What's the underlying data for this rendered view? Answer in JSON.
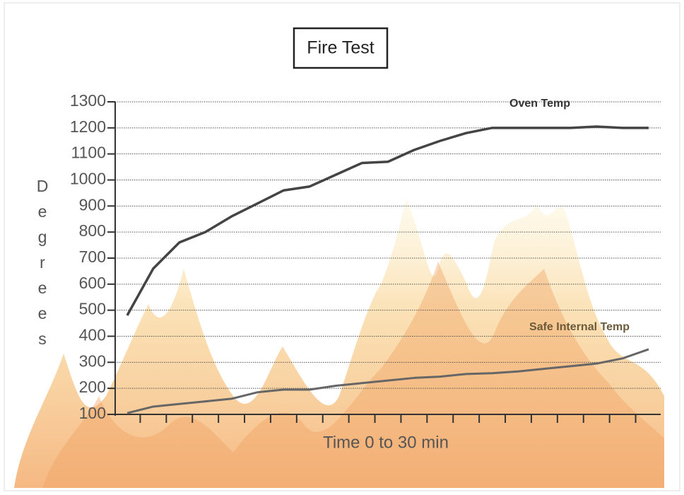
{
  "chart_data": {
    "type": "line",
    "title": "Fire Test",
    "x_label": "Time 0 to 30 min",
    "y_label": "Degrees",
    "categories": [
      null,
      null,
      null,
      null,
      null,
      null,
      null,
      null,
      null,
      null,
      null,
      null,
      null,
      null,
      null,
      null,
      null,
      null,
      null,
      null,
      null
    ],
    "series": [
      {
        "name": "Oven Temp",
        "color": "#444444",
        "values": [
          480,
          660,
          760,
          800,
          860,
          910,
          960,
          975,
          1020,
          1065,
          1070,
          1115,
          1150,
          1180,
          1200,
          1200,
          1200,
          1200,
          1205,
          1200,
          1200
        ]
      },
      {
        "name": "Safe Internal Temp",
        "color": "#666666",
        "values": [
          105,
          130,
          140,
          150,
          160,
          185,
          195,
          195,
          210,
          220,
          230,
          240,
          245,
          255,
          258,
          265,
          275,
          285,
          295,
          315,
          350
        ]
      }
    ],
    "ylim": [
      100,
      1300
    ],
    "yticks": [
      100,
      200,
      300,
      400,
      500,
      600,
      700,
      800,
      900,
      1000,
      1100,
      1200,
      1300
    ],
    "grid": true
  }
}
